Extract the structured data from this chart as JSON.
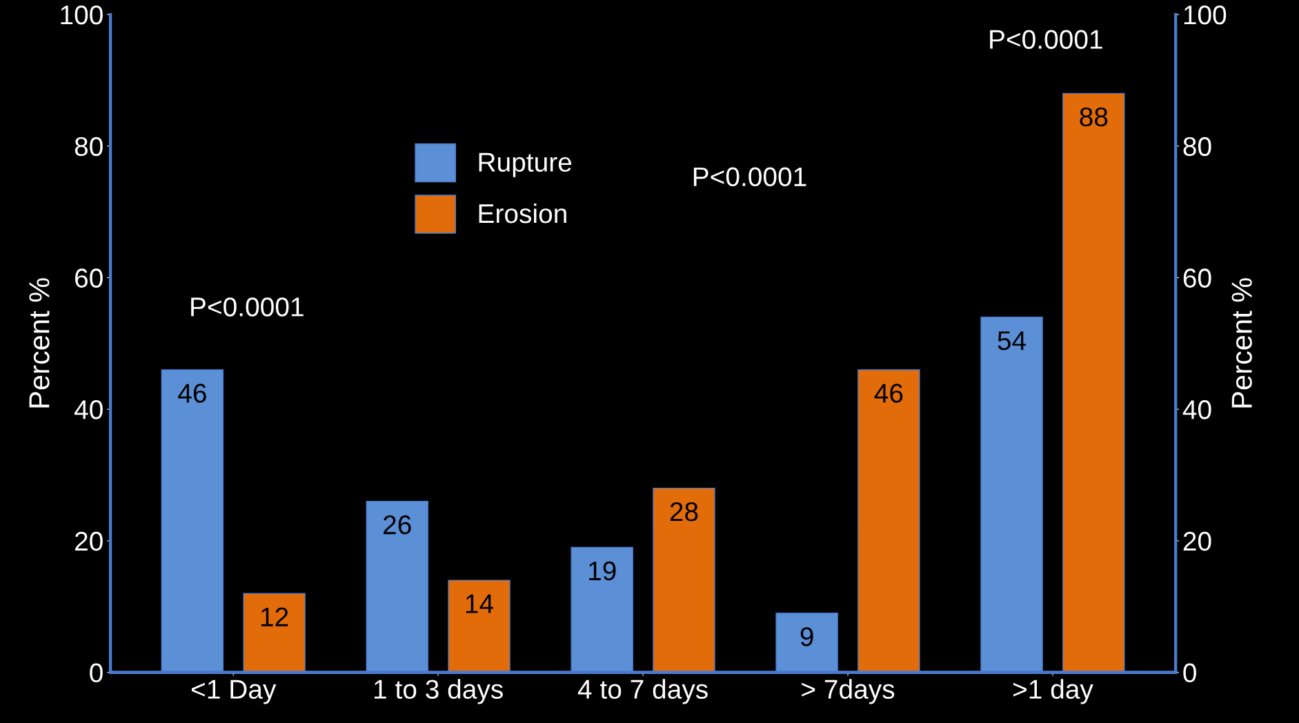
{
  "chart_data": {
    "type": "bar",
    "categories": [
      "<1 Day",
      "1 to 3 days",
      "4 to 7 days",
      "> 7days",
      ">1 day"
    ],
    "series": [
      {
        "name": "Rupture",
        "color": "#5b8fd6",
        "values": [
          46,
          26,
          19,
          9,
          54
        ]
      },
      {
        "name": "Erosion",
        "color": "#e36c0a",
        "values": [
          12,
          14,
          28,
          46,
          88
        ]
      }
    ],
    "ylabel": "Percent %",
    "y2label": "Percent %",
    "ylim": [
      0,
      100
    ],
    "yticks": [
      0,
      20,
      40,
      60,
      80,
      100
    ],
    "y2lim": [
      0,
      100
    ],
    "y2ticks": [
      0,
      20,
      40,
      60,
      80,
      100
    ],
    "data_labels": true,
    "legend": "top",
    "grid": false,
    "annotations": [
      "P<0.0001",
      "P<0.0001",
      "P<0.0001"
    ]
  }
}
